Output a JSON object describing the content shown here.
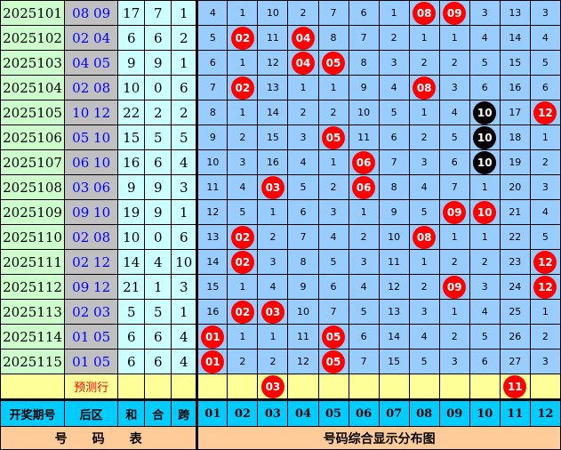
{
  "colors": {
    "hit": "#ff0000",
    "repeat": "#000000",
    "grid_bg": "#99ccff",
    "header_bg": "#00ccff",
    "footer_bg": "#ffcc99",
    "predict_bg": "#ffff99"
  },
  "rows": [
    {
      "period": "2025101",
      "back": "08  09",
      "sum": "17",
      "he": "7",
      "span": "1",
      "cells": [
        "4",
        "1",
        "10",
        "2",
        "7",
        "6",
        "1",
        "08",
        "09",
        "3",
        "13",
        "3"
      ],
      "hits": [
        7,
        8
      ],
      "black": []
    },
    {
      "period": "2025102",
      "back": "02  04",
      "sum": "6",
      "he": "6",
      "span": "2",
      "cells": [
        "5",
        "02",
        "11",
        "04",
        "8",
        "7",
        "2",
        "1",
        "1",
        "4",
        "14",
        "4"
      ],
      "hits": [
        1,
        3
      ],
      "black": []
    },
    {
      "period": "2025103",
      "back": "04  05",
      "sum": "9",
      "he": "9",
      "span": "1",
      "cells": [
        "6",
        "1",
        "12",
        "04",
        "05",
        "8",
        "3",
        "2",
        "2",
        "5",
        "15",
        "5"
      ],
      "hits": [
        3,
        4
      ],
      "black": []
    },
    {
      "period": "2025104",
      "back": "02  08",
      "sum": "10",
      "he": "0",
      "span": "6",
      "cells": [
        "7",
        "02",
        "13",
        "1",
        "1",
        "9",
        "4",
        "08",
        "3",
        "6",
        "16",
        "6"
      ],
      "hits": [
        1,
        7
      ],
      "black": []
    },
    {
      "period": "2025105",
      "back": "10  12",
      "sum": "22",
      "he": "2",
      "span": "2",
      "cells": [
        "8",
        "1",
        "14",
        "2",
        "2",
        "10",
        "5",
        "1",
        "4",
        "10",
        "17",
        "12"
      ],
      "hits": [
        9,
        11
      ],
      "black": [
        9
      ]
    },
    {
      "period": "2025106",
      "back": "05  10",
      "sum": "15",
      "he": "5",
      "span": "5",
      "cells": [
        "9",
        "2",
        "15",
        "3",
        "05",
        "11",
        "6",
        "2",
        "5",
        "10",
        "18",
        "1"
      ],
      "hits": [
        4,
        9
      ],
      "black": [
        9
      ]
    },
    {
      "period": "2025107",
      "back": "06  10",
      "sum": "16",
      "he": "6",
      "span": "4",
      "cells": [
        "10",
        "3",
        "16",
        "4",
        "1",
        "06",
        "7",
        "3",
        "6",
        "10",
        "19",
        "2"
      ],
      "hits": [
        5,
        9
      ],
      "black": [
        9
      ]
    },
    {
      "period": "2025108",
      "back": "03  06",
      "sum": "9",
      "he": "9",
      "span": "3",
      "cells": [
        "11",
        "4",
        "03",
        "5",
        "2",
        "06",
        "8",
        "4",
        "7",
        "1",
        "20",
        "3"
      ],
      "hits": [
        2,
        5
      ],
      "black": []
    },
    {
      "period": "2025109",
      "back": "09  10",
      "sum": "19",
      "he": "9",
      "span": "1",
      "cells": [
        "12",
        "5",
        "1",
        "6",
        "3",
        "1",
        "9",
        "5",
        "09",
        "10",
        "21",
        "4"
      ],
      "hits": [
        8,
        9
      ],
      "black": []
    },
    {
      "period": "2025110",
      "back": "02  08",
      "sum": "10",
      "he": "0",
      "span": "6",
      "cells": [
        "13",
        "02",
        "2",
        "7",
        "4",
        "2",
        "10",
        "08",
        "1",
        "1",
        "22",
        "5"
      ],
      "hits": [
        1,
        7
      ],
      "black": []
    },
    {
      "period": "2025111",
      "back": "02  12",
      "sum": "14",
      "he": "4",
      "span": "10",
      "cells": [
        "14",
        "02",
        "3",
        "8",
        "5",
        "3",
        "11",
        "1",
        "2",
        "2",
        "23",
        "12"
      ],
      "hits": [
        1,
        11
      ],
      "black": []
    },
    {
      "period": "2025112",
      "back": "09  12",
      "sum": "21",
      "he": "1",
      "span": "3",
      "cells": [
        "15",
        "1",
        "4",
        "9",
        "6",
        "4",
        "12",
        "2",
        "09",
        "3",
        "24",
        "12"
      ],
      "hits": [
        8,
        11
      ],
      "black": []
    },
    {
      "period": "2025113",
      "back": "02  03",
      "sum": "5",
      "he": "5",
      "span": "1",
      "cells": [
        "16",
        "02",
        "03",
        "10",
        "7",
        "5",
        "13",
        "3",
        "1",
        "4",
        "25",
        "1"
      ],
      "hits": [
        1,
        2
      ],
      "black": []
    },
    {
      "period": "2025114",
      "back": "01  05",
      "sum": "6",
      "he": "6",
      "span": "4",
      "cells": [
        "01",
        "1",
        "1",
        "11",
        "05",
        "6",
        "14",
        "4",
        "2",
        "5",
        "26",
        "2"
      ],
      "hits": [
        0,
        4
      ],
      "black": []
    },
    {
      "period": "2025115",
      "back": "01  05",
      "sum": "6",
      "he": "6",
      "span": "4",
      "cells": [
        "01",
        "2",
        "2",
        "12",
        "05",
        "7",
        "15",
        "5",
        "3",
        "6",
        "27",
        "3"
      ],
      "hits": [
        0,
        4
      ],
      "black": []
    }
  ],
  "predict": {
    "label": "预测行",
    "cells": [
      "",
      "",
      "03",
      "",
      "",
      "",
      "",
      "",
      "",
      "",
      "11",
      ""
    ],
    "hits": [
      2,
      10
    ]
  },
  "header": {
    "period": "开奖期号",
    "back": "后区",
    "sum": "和",
    "he": "合",
    "span": "跨",
    "numbers": [
      "01",
      "02",
      "03",
      "04",
      "05",
      "06",
      "07",
      "08",
      "09",
      "10",
      "11",
      "12"
    ]
  },
  "footer": {
    "left": "号　　码　　表",
    "right": "号码综合显示分布图"
  }
}
